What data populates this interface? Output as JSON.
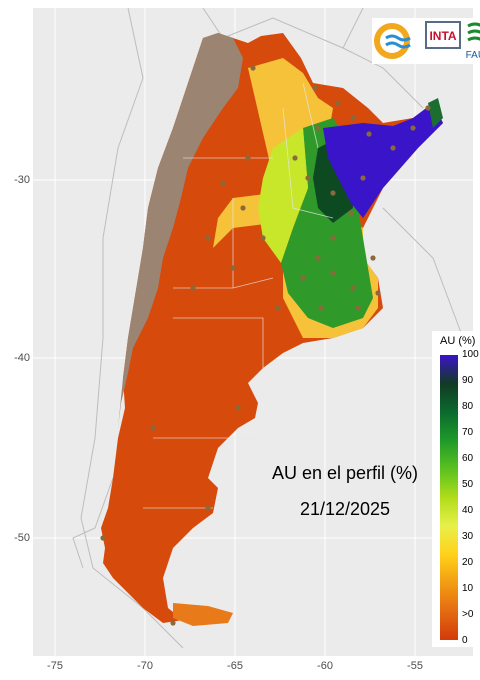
{
  "title": "AU en el perfil (%)",
  "date": "21/12/2025",
  "legend": {
    "title": "AU (%)",
    "labels": [
      "100",
      "90",
      "80",
      "70",
      "60",
      "50",
      "40",
      "30",
      "20",
      "10",
      ">0",
      "0"
    ]
  },
  "axes": {
    "x_ticks": [
      "-75",
      "-70",
      "-65",
      "-60",
      "-55"
    ],
    "y_ticks": [
      "-30",
      "-40",
      "-50"
    ]
  },
  "logos": {
    "inta": "INTA",
    "fauba": "FAUBA"
  },
  "colors": {
    "panel_bg": "#ebebeb",
    "mountain": "#9c8472",
    "dry": "#d64a0c",
    "wet": "#3a14c8"
  }
}
